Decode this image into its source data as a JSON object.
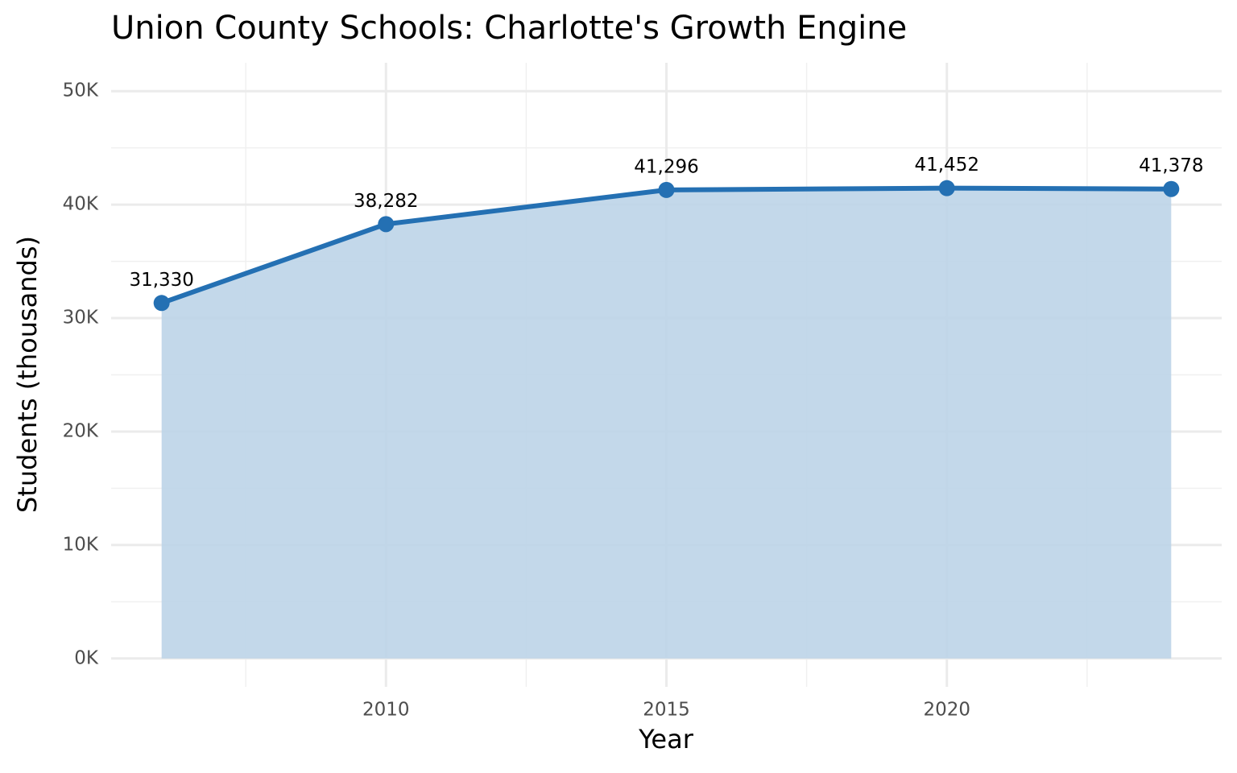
{
  "chart_data": {
    "type": "area-line",
    "title": "Union County Schools: Charlotte's Growth Engine",
    "x_label": "Year",
    "y_label": "Students (thousands)",
    "x": [
      2006,
      2010,
      2015,
      2020,
      2024
    ],
    "series": [
      {
        "name": "Students",
        "color": "#2470b3",
        "area_color": "#bdd4e8",
        "values": [
          31330,
          38282,
          41296,
          41452,
          41378
        ],
        "value_labels": [
          "31,330",
          "38,282",
          "41,296",
          "41,452",
          "41,378"
        ]
      }
    ],
    "xlim": [
      2005.1,
      2024.9
    ],
    "xticks": [
      2010,
      2015,
      2020
    ],
    "ylim": [
      -2500,
      52500
    ],
    "yticks": [
      {
        "value": 0,
        "label": "0K"
      },
      {
        "value": 10000,
        "label": "10K"
      },
      {
        "value": 20000,
        "label": "20K"
      },
      {
        "value": 30000,
        "label": "30K"
      },
      {
        "value": 40000,
        "label": "40K"
      },
      {
        "value": 50000,
        "label": "50K"
      }
    ],
    "grid": true
  }
}
